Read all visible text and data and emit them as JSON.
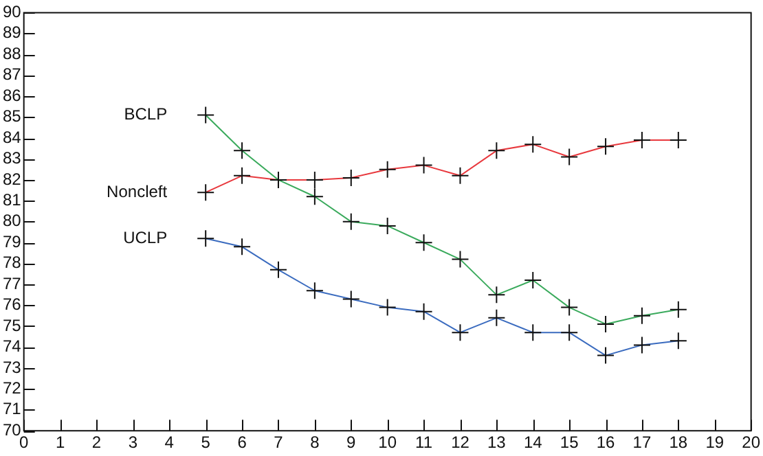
{
  "chart_data": {
    "type": "line",
    "x": [
      5,
      6,
      7,
      8,
      9,
      10,
      11,
      12,
      13,
      14,
      15,
      16,
      17,
      18
    ],
    "series": [
      {
        "name": "BCLP",
        "color": "#3aaa5c",
        "values": [
          85.1,
          83.4,
          82.0,
          81.2,
          80.0,
          79.8,
          79.0,
          78.2,
          76.5,
          77.2,
          75.9,
          75.1,
          75.5,
          75.8
        ]
      },
      {
        "name": "Noncleft",
        "color": "#e8383d",
        "values": [
          81.4,
          82.2,
          82.0,
          82.0,
          82.1,
          82.5,
          82.7,
          82.2,
          83.4,
          83.7,
          83.1,
          83.6,
          83.9,
          83.9
        ]
      },
      {
        "name": "UCLP",
        "color": "#3a6bbf",
        "values": [
          79.2,
          78.8,
          77.7,
          76.7,
          76.3,
          75.9,
          75.7,
          74.7,
          75.4,
          74.7,
          74.7,
          73.6,
          74.1,
          74.3
        ]
      }
    ],
    "xlim": [
      0,
      20
    ],
    "xticks": [
      0,
      1,
      2,
      3,
      4,
      5,
      6,
      7,
      8,
      9,
      10,
      11,
      12,
      13,
      14,
      15,
      16,
      17,
      18,
      19,
      20
    ],
    "ylim": [
      70,
      90
    ],
    "yticks": [
      70,
      71,
      72,
      73,
      74,
      75,
      76,
      77,
      78,
      79,
      80,
      81,
      82,
      83,
      84,
      85,
      86,
      87,
      88,
      89,
      90
    ],
    "marker": "cross",
    "line_style": "solid",
    "grid": false,
    "legend": false
  }
}
